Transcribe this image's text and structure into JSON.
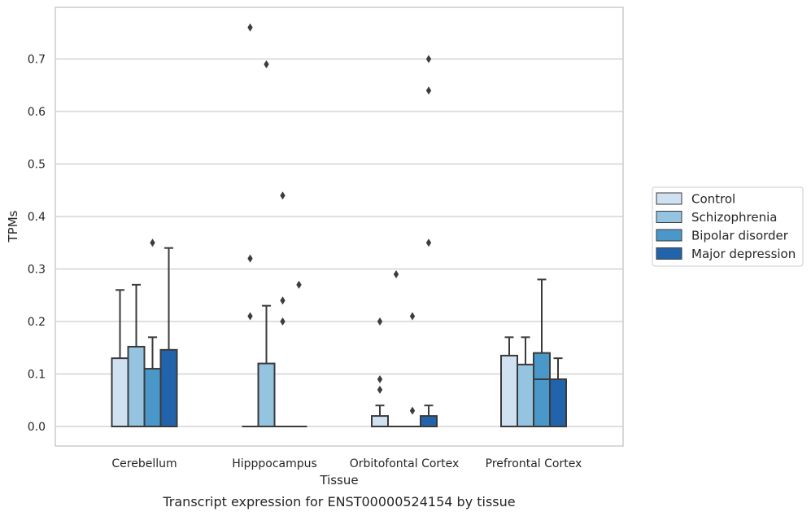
{
  "chart_data": {
    "type": "box",
    "caption": "Transcript expression for ENST00000524154 by tissue",
    "xlabel": "Tissue",
    "ylabel": "TPMs",
    "ylim": [
      -0.037,
      0.8
    ],
    "yticks": [
      0.0,
      0.1,
      0.2,
      0.3,
      0.4,
      0.5,
      0.6,
      0.7
    ],
    "ytick_labels": [
      "0.0",
      "0.1",
      "0.2",
      "0.3",
      "0.4",
      "0.5",
      "0.6",
      "0.7"
    ],
    "grid": "horizontal",
    "legend_position": "right",
    "categories": [
      "Cerebellum",
      "Hipppocampus",
      "Orbitofontal Cortex",
      "Prefrontal Cortex"
    ],
    "series": [
      {
        "name": "Control",
        "color": "#d0e1f2",
        "boxes": [
          {
            "q1": 0,
            "median": 0,
            "q3": 0.13,
            "whisker_low": 0,
            "whisker_high": 0.26,
            "outliers": []
          },
          {
            "q1": 0,
            "median": 0,
            "q3": 0,
            "whisker_low": 0,
            "whisker_high": 0,
            "outliers": [
              0.76,
              0.32,
              0.21
            ]
          },
          {
            "q1": 0,
            "median": 0,
            "q3": 0.02,
            "whisker_low": 0,
            "whisker_high": 0.04,
            "outliers": [
              0.2,
              0.09,
              0.07
            ]
          },
          {
            "q1": 0,
            "median": 0,
            "q3": 0.135,
            "whisker_low": 0,
            "whisker_high": 0.17,
            "outliers": []
          }
        ]
      },
      {
        "name": "Schizophrenia",
        "color": "#94c4df",
        "boxes": [
          {
            "q1": 0,
            "median": 0,
            "q3": 0.152,
            "whisker_low": 0,
            "whisker_high": 0.27,
            "outliers": []
          },
          {
            "q1": 0,
            "median": 0,
            "q3": 0.12,
            "whisker_low": 0,
            "whisker_high": 0.23,
            "outliers": [
              0.69
            ]
          },
          {
            "q1": 0,
            "median": 0,
            "q3": 0,
            "whisker_low": 0,
            "whisker_high": 0,
            "outliers": [
              0.29
            ]
          },
          {
            "q1": 0,
            "median": 0,
            "q3": 0.118,
            "whisker_low": 0,
            "whisker_high": 0.17,
            "outliers": []
          }
        ]
      },
      {
        "name": "Bipolar disorder",
        "color": "#4a98c9",
        "boxes": [
          {
            "q1": 0,
            "median": 0,
            "q3": 0.11,
            "whisker_low": 0,
            "whisker_high": 0.17,
            "outliers": [
              0.35
            ]
          },
          {
            "q1": 0,
            "median": 0,
            "q3": 0,
            "whisker_low": 0,
            "whisker_high": 0,
            "outliers": [
              0.44,
              0.24,
              0.2
            ]
          },
          {
            "q1": 0,
            "median": 0,
            "q3": 0,
            "whisker_low": 0,
            "whisker_high": 0,
            "outliers": [
              0.21,
              0.03
            ]
          },
          {
            "q1": 0,
            "median": 0.09,
            "q3": 0.14,
            "whisker_low": 0,
            "whisker_high": 0.28,
            "outliers": []
          }
        ]
      },
      {
        "name": "Major depression",
        "color": "#2164ab",
        "boxes": [
          {
            "q1": 0,
            "median": 0,
            "q3": 0.146,
            "whisker_low": 0,
            "whisker_high": 0.34,
            "outliers": []
          },
          {
            "q1": 0,
            "median": 0,
            "q3": 0,
            "whisker_low": 0,
            "whisker_high": 0,
            "outliers": [
              0.27
            ]
          },
          {
            "q1": 0,
            "median": 0,
            "q3": 0.02,
            "whisker_low": 0,
            "whisker_high": 0.04,
            "outliers": [
              0.7,
              0.64,
              0.35
            ]
          },
          {
            "q1": 0,
            "median": 0,
            "q3": 0.09,
            "whisker_low": 0,
            "whisker_high": 0.13,
            "outliers": []
          }
        ]
      }
    ]
  }
}
